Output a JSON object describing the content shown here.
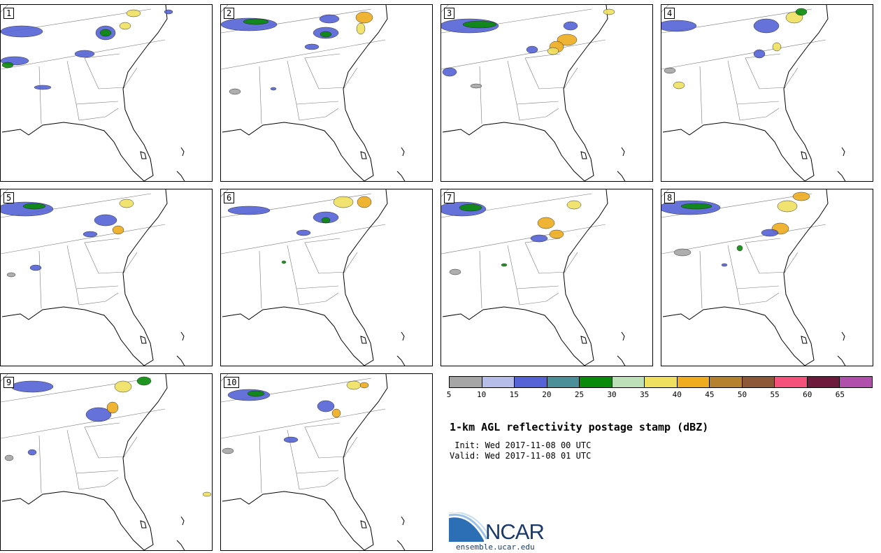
{
  "title": "1-km AGL reflectivity postage stamp (dBZ)",
  "init_line": " Init: Wed 2017-11-08 00 UTC",
  "valid_line": "Valid: Wed 2017-11-08 01 UTC",
  "members": [
    "1",
    "2",
    "3",
    "4",
    "5",
    "6",
    "7",
    "8",
    "9",
    "10"
  ],
  "colorbar": {
    "colors": [
      "#a6a6a6",
      "#b5bde8",
      "#5563d6",
      "#4b9098",
      "#0a8a0a",
      "#bde0b8",
      "#f0e060",
      "#eeac1e",
      "#b5812f",
      "#8c5837",
      "#f4527a",
      "#6d1a3d",
      "#b14fad"
    ],
    "ticks": [
      "5",
      "10",
      "15",
      "20",
      "25",
      "30",
      "35",
      "40",
      "45",
      "50",
      "55",
      "60",
      "65"
    ]
  },
  "logo": {
    "text": "NCAR",
    "url": "ensemble.ucar.edu"
  }
}
